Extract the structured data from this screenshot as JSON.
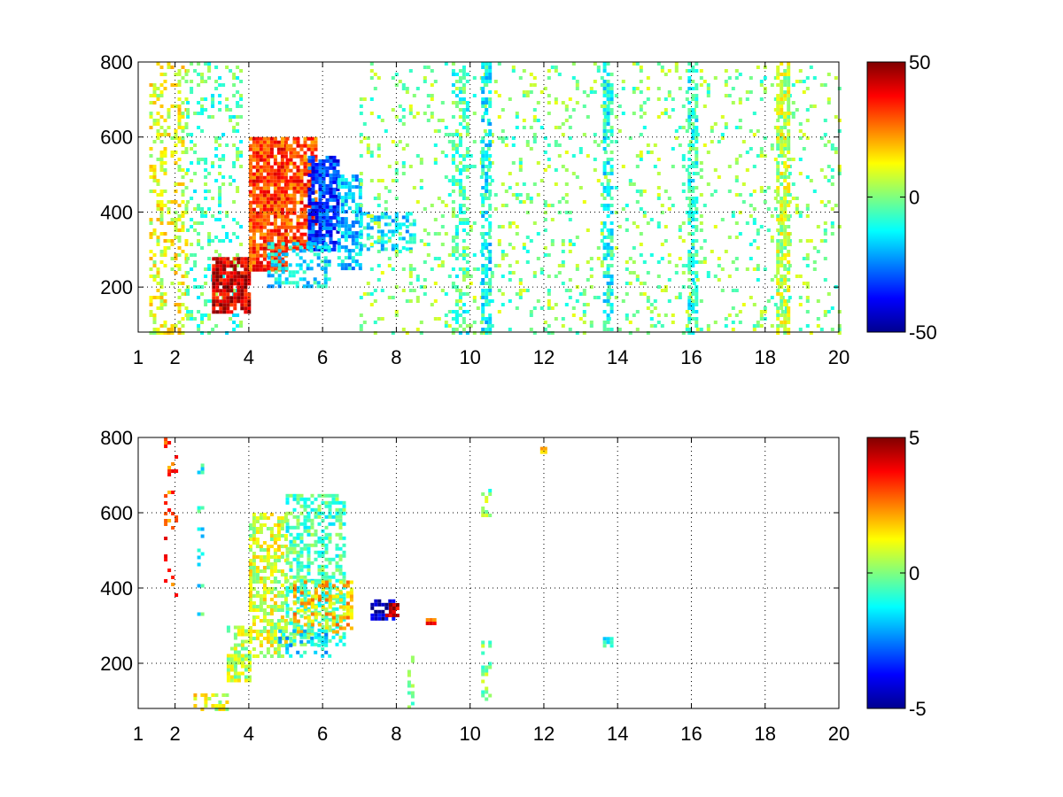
{
  "chart_data": [
    {
      "type": "heatmap",
      "title": "",
      "xlabel": "",
      "ylabel": "",
      "xlim": [
        1,
        20
      ],
      "ylim": [
        80,
        800
      ],
      "x_ticks": [
        1,
        2,
        4,
        6,
        8,
        10,
        12,
        14,
        16,
        18,
        20
      ],
      "x_tick_labels": [
        "1",
        "2",
        "4",
        "6",
        "8",
        "10",
        "12",
        "14",
        "16",
        "18",
        "20"
      ],
      "y_ticks": [
        200,
        400,
        600,
        800
      ],
      "y_tick_labels": [
        "200",
        "400",
        "600",
        "800"
      ],
      "grid": true,
      "colormap": "jet",
      "colorbar": {
        "min": -50,
        "max": 50,
        "tick_labels": [
          "50",
          "0",
          "-50"
        ]
      },
      "regions": [
        {
          "x": [
            1.3,
            2.3
          ],
          "y": [
            80,
            800
          ],
          "value": 10,
          "density": 0.35
        },
        {
          "x": [
            2.3,
            3.8
          ],
          "y": [
            80,
            800
          ],
          "value": -5,
          "density": 0.22
        },
        {
          "x": [
            3.0,
            4.0
          ],
          "y": [
            130,
            280
          ],
          "value": 42,
          "density": 0.85
        },
        {
          "x": [
            4.0,
            5.0
          ],
          "y": [
            250,
            600
          ],
          "value": 32,
          "density": 0.85
        },
        {
          "x": [
            5.0,
            5.8
          ],
          "y": [
            300,
            600
          ],
          "value": 30,
          "density": 0.75
        },
        {
          "x": [
            5.6,
            6.4
          ],
          "y": [
            300,
            550
          ],
          "value": -32,
          "density": 0.8
        },
        {
          "x": [
            6.4,
            7.0
          ],
          "y": [
            250,
            500
          ],
          "value": -18,
          "density": 0.6
        },
        {
          "x": [
            7.0,
            8.5
          ],
          "y": [
            300,
            400
          ],
          "value": -15,
          "density": 0.45
        },
        {
          "x": [
            4.5,
            6.2
          ],
          "y": [
            200,
            320
          ],
          "value": -14,
          "density": 0.5
        },
        {
          "x": [
            7.0,
            20.0
          ],
          "y": [
            80,
            800
          ],
          "value": 0,
          "density": 0.12
        },
        {
          "x": [
            9.5,
            9.9
          ],
          "y": [
            80,
            800
          ],
          "value": -6,
          "density": 0.35
        },
        {
          "x": [
            10.3,
            10.5
          ],
          "y": [
            80,
            800
          ],
          "value": -12,
          "density": 0.6
        },
        {
          "x": [
            13.6,
            13.8
          ],
          "y": [
            80,
            800
          ],
          "value": -10,
          "density": 0.6
        },
        {
          "x": [
            15.9,
            16.1
          ],
          "y": [
            80,
            800
          ],
          "value": -8,
          "density": 0.55
        },
        {
          "x": [
            18.3,
            18.6
          ],
          "y": [
            80,
            800
          ],
          "value": 6,
          "density": 0.7
        }
      ]
    },
    {
      "type": "heatmap",
      "title": "",
      "xlabel": "",
      "ylabel": "",
      "xlim": [
        1,
        20
      ],
      "ylim": [
        80,
        800
      ],
      "x_ticks": [
        1,
        2,
        4,
        6,
        8,
        10,
        12,
        14,
        16,
        18,
        20
      ],
      "x_tick_labels": [
        "1",
        "2",
        "4",
        "6",
        "8",
        "10",
        "12",
        "14",
        "16",
        "18",
        "20"
      ],
      "y_ticks": [
        200,
        400,
        600,
        800
      ],
      "y_tick_labels": [
        "200",
        "400",
        "600",
        "800"
      ],
      "grid": true,
      "colormap": "jet",
      "colorbar": {
        "min": -5,
        "max": 5,
        "tick_labels": [
          "5",
          "0",
          "-5"
        ]
      },
      "regions": [
        {
          "x": [
            1.7,
            2.0
          ],
          "y": [
            380,
            800
          ],
          "value": 3,
          "density": 0.2
        },
        {
          "x": [
            2.6,
            2.7
          ],
          "y": [
            320,
            740
          ],
          "value": -1,
          "density": 0.2
        },
        {
          "x": [
            2.5,
            3.4
          ],
          "y": [
            80,
            120
          ],
          "value": 1,
          "density": 0.5
        },
        {
          "x": [
            3.4,
            4.0
          ],
          "y": [
            150,
            300
          ],
          "value": 0.5,
          "density": 0.7
        },
        {
          "x": [
            4.0,
            5.0
          ],
          "y": [
            220,
            600
          ],
          "value": 0.8,
          "density": 0.6
        },
        {
          "x": [
            5.0,
            6.6
          ],
          "y": [
            250,
            650
          ],
          "value": -0.5,
          "density": 0.55
        },
        {
          "x": [
            5.2,
            6.8
          ],
          "y": [
            280,
            420
          ],
          "value": 1.8,
          "density": 0.4
        },
        {
          "x": [
            4.8,
            6.2
          ],
          "y": [
            220,
            290
          ],
          "value": -1.5,
          "density": 0.4
        },
        {
          "x": [
            7.3,
            7.9
          ],
          "y": [
            320,
            370
          ],
          "value": -4.5,
          "density": 0.8
        },
        {
          "x": [
            7.7,
            8.0
          ],
          "y": [
            330,
            360
          ],
          "value": 4.5,
          "density": 0.7
        },
        {
          "x": [
            8.8,
            9.0
          ],
          "y": [
            310,
            320
          ],
          "value": 3,
          "density": 0.9
        },
        {
          "x": [
            10.3,
            10.5
          ],
          "y": [
            80,
            260
          ],
          "value": 0,
          "density": 0.3
        },
        {
          "x": [
            10.3,
            10.5
          ],
          "y": [
            590,
            720
          ],
          "value": 0,
          "density": 0.2
        },
        {
          "x": [
            11.9,
            12.0
          ],
          "y": [
            760,
            775
          ],
          "value": 2,
          "density": 1.0
        },
        {
          "x": [
            13.6,
            13.8
          ],
          "y": [
            250,
            270
          ],
          "value": -1,
          "density": 0.8
        },
        {
          "x": [
            8.3,
            8.4
          ],
          "y": [
            80,
            220
          ],
          "value": 0,
          "density": 0.3
        }
      ]
    }
  ]
}
